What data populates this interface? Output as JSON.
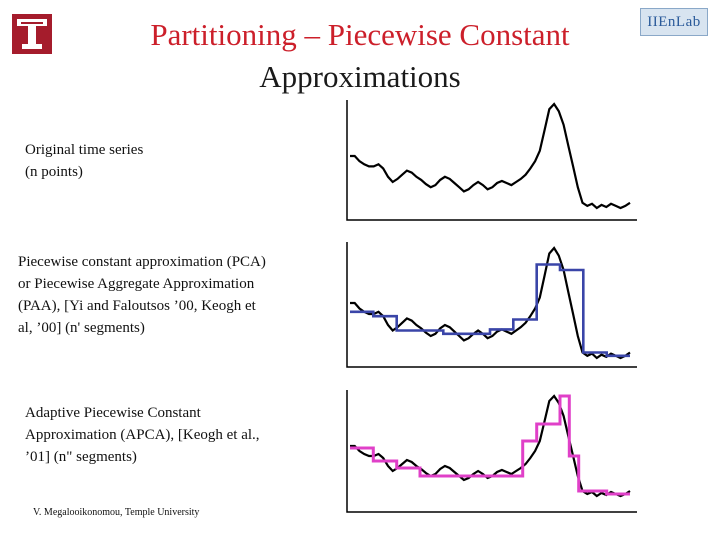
{
  "slide": {
    "title_line1": "Partitioning – Piecewise Constant",
    "title_line2": "Approximations",
    "right_logo_text": "IIEnLab"
  },
  "sections": {
    "original": {
      "line1": "Original time series",
      "line2": "(n points)"
    },
    "pca": {
      "line1": "Piecewise constant approximation (PCA)",
      "line2": "or Piecewise Aggregate Approximation",
      "line3": "(PAA), [Yi and Faloutsos ’00, Keogh et",
      "line4": "al, ’00]  (n' segments)"
    },
    "apca": {
      "line1": "Adaptive Piecewise Constant",
      "line2": "Approximation (APCA), [Keogh et al.,",
      "line3": "’01] (n\" segments)"
    }
  },
  "footer": {
    "credit": "V. Megalooikonomou, Temple University"
  },
  "colors": {
    "title": "#cc1f2a",
    "pca_step": "#3a45a8",
    "apca_step": "#e040c8",
    "series": "#000000"
  },
  "icons": {
    "left_logo": "temple-t-logo-icon",
    "right_logo": "lab-logo-icon"
  },
  "series": [
    0.5,
    0.5,
    0.45,
    0.42,
    0.4,
    0.4,
    0.42,
    0.38,
    0.3,
    0.25,
    0.28,
    0.32,
    0.36,
    0.34,
    0.3,
    0.27,
    0.23,
    0.2,
    0.22,
    0.27,
    0.3,
    0.28,
    0.24,
    0.2,
    0.16,
    0.18,
    0.22,
    0.25,
    0.22,
    0.18,
    0.2,
    0.24,
    0.26,
    0.24,
    0.22,
    0.25,
    0.28,
    0.32,
    0.38,
    0.45,
    0.55,
    0.75,
    0.95,
    1.0,
    0.93,
    0.8,
    0.6,
    0.4,
    0.2,
    0.05,
    0.02,
    0.04,
    0.0,
    0.03,
    0.01,
    0.04,
    0.02,
    0.0,
    0.02,
    0.05
  ],
  "pca_segments": [
    0.42,
    0.38,
    0.25,
    0.25,
    0.22,
    0.22,
    0.26,
    0.35,
    0.85,
    0.8,
    0.05,
    0.02
  ],
  "apca_segments": [
    {
      "start": 0,
      "end": 5,
      "value": 0.48
    },
    {
      "start": 5,
      "end": 10,
      "value": 0.35
    },
    {
      "start": 10,
      "end": 15,
      "value": 0.28
    },
    {
      "start": 15,
      "end": 37,
      "value": 0.2
    },
    {
      "start": 37,
      "end": 40,
      "value": 0.55
    },
    {
      "start": 40,
      "end": 45,
      "value": 0.72
    },
    {
      "start": 45,
      "end": 47,
      "value": 1.0
    },
    {
      "start": 47,
      "end": 49,
      "value": 0.4
    },
    {
      "start": 49,
      "end": 55,
      "value": 0.05
    },
    {
      "start": 55,
      "end": 60,
      "value": 0.02
    }
  ]
}
